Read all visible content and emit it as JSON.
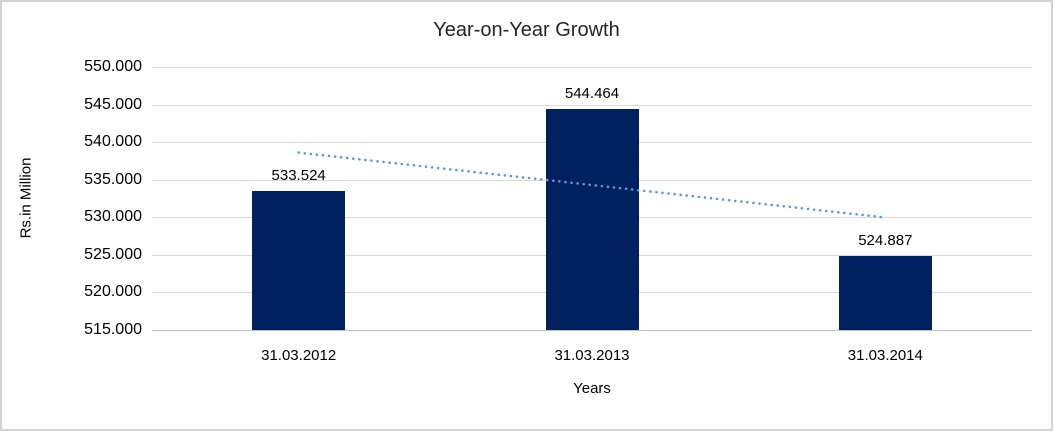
{
  "chart_data": {
    "type": "bar",
    "title": "Year-on-Year Growth",
    "xlabel": "Years",
    "ylabel": "Rs.in Million",
    "categories": [
      "31.03.2012",
      "31.03.2013",
      "31.03.2014"
    ],
    "values": [
      533.524,
      544.464,
      524.887
    ],
    "data_labels": [
      "533.524",
      "544.464",
      "524.887"
    ],
    "ylim": [
      515,
      550
    ],
    "ytick_step": 5,
    "yticks": [
      {
        "value": 550,
        "label": "550.000"
      },
      {
        "value": 545,
        "label": "545.000"
      },
      {
        "value": 540,
        "label": "540.000"
      },
      {
        "value": 535,
        "label": "535.000"
      },
      {
        "value": 530,
        "label": "530.000"
      },
      {
        "value": 525,
        "label": "525.000"
      },
      {
        "value": 520,
        "label": "520.000"
      },
      {
        "value": 515,
        "label": "515.000"
      }
    ],
    "grid": "horizontal",
    "legend": "none",
    "bar_color": "#002060",
    "gridline_color": "#d9d9d9",
    "axis_line_color": "#bfbfbf",
    "trendline": {
      "type": "linear",
      "style": "dotted",
      "color": "#5b9bd5",
      "start_value": 538.61,
      "end_value": 529.97
    }
  }
}
